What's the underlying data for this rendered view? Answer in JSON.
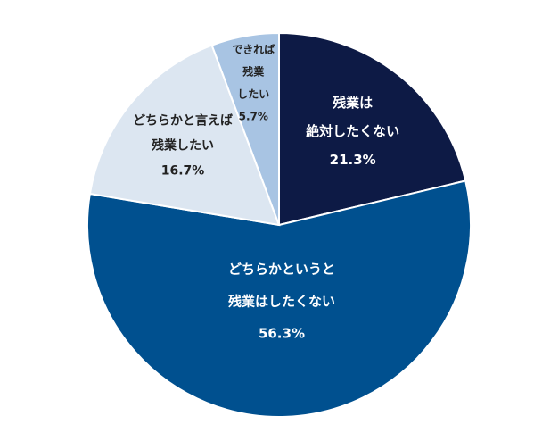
{
  "chart_data": {
    "type": "pie",
    "categories": [
      [
        "残業は",
        "絶対したくない"
      ],
      [
        "どちらかというと",
        "残業はしたくない"
      ],
      [
        "どちらかと言えば",
        "残業したい"
      ],
      [
        "できれば",
        "残業",
        "したい"
      ]
    ],
    "values": [
      21.3,
      56.3,
      16.7,
      5.7
    ],
    "value_labels": [
      "21.3%",
      "56.3%",
      "16.7%",
      "5.7%"
    ],
    "colors": [
      "#0d1a45",
      "#00508f",
      "#dce6f1",
      "#a8c4e3"
    ]
  }
}
